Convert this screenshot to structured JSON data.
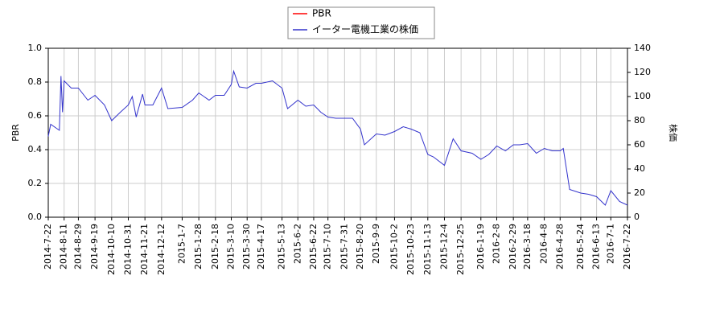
{
  "chart_data": {
    "type": "line",
    "y_label": "PBR",
    "y2_label": "株価",
    "x": [
      "2014-7-22",
      "2014-7-25",
      "2014-8-5",
      "2014-8-7",
      "2014-8-9",
      "2014-8-11",
      "2014-8-20",
      "2014-8-29",
      "2014-9-10",
      "2014-9-19",
      "2014-10-1",
      "2014-10-10",
      "2014-10-21",
      "2014-10-31",
      "2014-11-5",
      "2014-11-10",
      "2014-11-18",
      "2014-11-21",
      "2014-12-1",
      "2014-12-12",
      "2014-12-20",
      "2015-1-7",
      "2015-1-20",
      "2015-1-28",
      "2015-2-10",
      "2015-2-18",
      "2015-3-1",
      "2015-3-10",
      "2015-3-13",
      "2015-3-20",
      "2015-3-30",
      "2015-4-10",
      "2015-4-17",
      "2015-5-1",
      "2015-5-13",
      "2015-5-20",
      "2015-6-2",
      "2015-6-12",
      "2015-6-22",
      "2015-7-1",
      "2015-7-10",
      "2015-7-20",
      "2015-7-31",
      "2015-8-10",
      "2015-8-20",
      "2015-8-25",
      "2015-9-9",
      "2015-9-20",
      "2015-10-2",
      "2015-10-13",
      "2015-10-23",
      "2015-11-3",
      "2015-11-13",
      "2015-11-20",
      "2015-12-4",
      "2015-12-15",
      "2015-12-25",
      "2016-1-8",
      "2016-1-19",
      "2016-1-29",
      "2016-2-8",
      "2016-2-19",
      "2016-2-29",
      "2016-3-8",
      "2016-3-18",
      "2016-3-29",
      "2016-4-8",
      "2016-4-18",
      "2016-4-28",
      "2016-5-2",
      "2016-5-10",
      "2016-5-24",
      "2016-6-3",
      "2016-6-13",
      "2016-6-24",
      "2016-7-1",
      "2016-7-12",
      "2016-7-22"
    ],
    "series": [
      {
        "name": "PBR",
        "color": "#ff0000",
        "values": [
          null,
          null,
          null,
          null,
          null,
          null,
          null,
          null,
          null,
          null,
          null,
          null,
          null,
          null,
          null,
          null,
          null,
          null,
          null,
          null,
          null,
          null,
          null,
          null,
          null,
          null,
          null,
          null,
          null,
          null,
          null,
          null,
          null,
          null,
          null,
          null,
          null,
          null,
          null,
          null,
          null,
          null,
          null,
          null,
          null,
          null,
          null,
          null,
          null,
          null,
          null,
          null,
          null,
          null,
          null,
          null,
          null,
          null,
          null,
          null,
          null,
          null,
          null,
          null,
          null,
          null,
          null,
          null,
          null,
          null,
          null,
          null,
          null,
          null,
          null,
          null,
          null,
          null
        ]
      },
      {
        "name": "イーター電機工業の株価",
        "color": "#3333cc",
        "axis": "y2",
        "values": [
          67,
          77,
          72,
          117,
          87,
          113,
          107,
          107,
          97,
          101,
          93,
          80,
          87,
          93,
          100,
          83,
          102,
          93,
          93,
          107,
          90,
          91,
          97,
          103,
          97,
          101,
          101,
          110,
          121,
          108,
          107,
          111,
          111,
          113,
          107,
          90,
          97,
          92,
          93,
          87,
          83,
          82,
          82,
          82,
          73,
          60,
          69,
          68,
          71,
          75,
          73,
          70,
          52,
          50,
          43,
          65,
          55,
          53,
          48,
          52,
          59,
          55,
          60,
          60,
          61,
          53,
          57,
          55,
          55,
          57,
          23,
          20,
          19,
          17,
          10,
          22,
          13,
          10
        ]
      }
    ],
    "xticks": [
      "2014-7-22",
      "2014-8-11",
      "2014-8-29",
      "2014-9-19",
      "2014-10-10",
      "2014-10-31",
      "2014-11-21",
      "2014-12-12",
      "2015-1-7",
      "2015-1-28",
      "2015-2-18",
      "2015-3-10",
      "2015-3-30",
      "2015-4-17",
      "2015-5-13",
      "2015-6-2",
      "2015-6-22",
      "2015-7-10",
      "2015-7-31",
      "2015-8-20",
      "2015-9-9",
      "2015-10-2",
      "2015-10-23",
      "2015-11-13",
      "2015-12-4",
      "2015-12-25",
      "2016-1-19",
      "2016-2-8",
      "2016-2-29",
      "2016-3-18",
      "2016-4-8",
      "2016-4-28",
      "2016-5-24",
      "2016-6-13",
      "2016-7-1",
      "2016-7-22"
    ],
    "ylim": [
      0,
      1
    ],
    "yticks": [
      {
        "value": 0,
        "label": "0.0"
      },
      {
        "value": 0.2,
        "label": "0.2"
      },
      {
        "value": 0.4,
        "label": "0.4"
      },
      {
        "value": 0.6,
        "label": "0.6"
      },
      {
        "value": 0.8,
        "label": "0.8"
      },
      {
        "value": 1,
        "label": "1.0"
      }
    ],
    "y2lim": [
      0,
      140
    ],
    "y2ticks": [
      0,
      20,
      40,
      60,
      80,
      100,
      120,
      140
    ],
    "grid": true,
    "legend": "top"
  }
}
